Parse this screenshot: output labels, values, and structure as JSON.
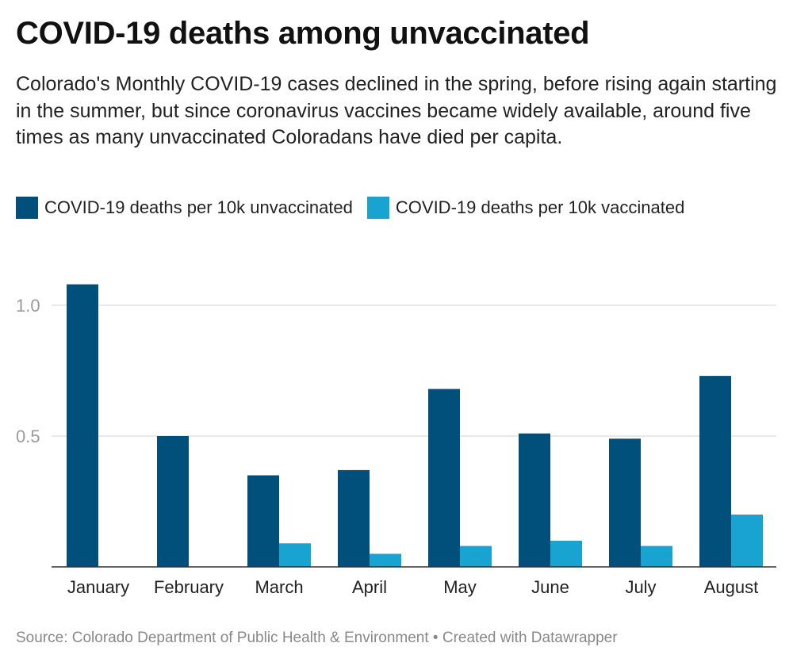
{
  "chart_data": {
    "type": "bar",
    "title": "COVID-19 deaths among unvaccinated",
    "subtitle": "Colorado's Monthly COVID-19 cases declined in the spring, before rising again starting in the summer, but since coronavirus vaccines became widely available, around five times as many unvaccinated Coloradans have died per capita.",
    "categories": [
      "January",
      "February",
      "March",
      "April",
      "May",
      "June",
      "July",
      "August"
    ],
    "series": [
      {
        "name": "COVID-19 deaths per 10k unvaccinated",
        "color": "#00507b",
        "values": [
          1.08,
          0.5,
          0.35,
          0.37,
          0.68,
          0.51,
          0.49,
          0.73
        ]
      },
      {
        "name": "COVID-19 deaths per 10k vaccinated",
        "color": "#19a3d1",
        "values": [
          null,
          null,
          0.09,
          0.05,
          0.08,
          0.1,
          0.08,
          0.2
        ]
      }
    ],
    "ylim": [
      0,
      1.1
    ],
    "yticks": [
      0.5,
      {
        "value": 1,
        "label": "1.0"
      }
    ],
    "grid": true,
    "source": "Source: Colorado Department of Public Health & Environment • Created with Datawrapper"
  }
}
